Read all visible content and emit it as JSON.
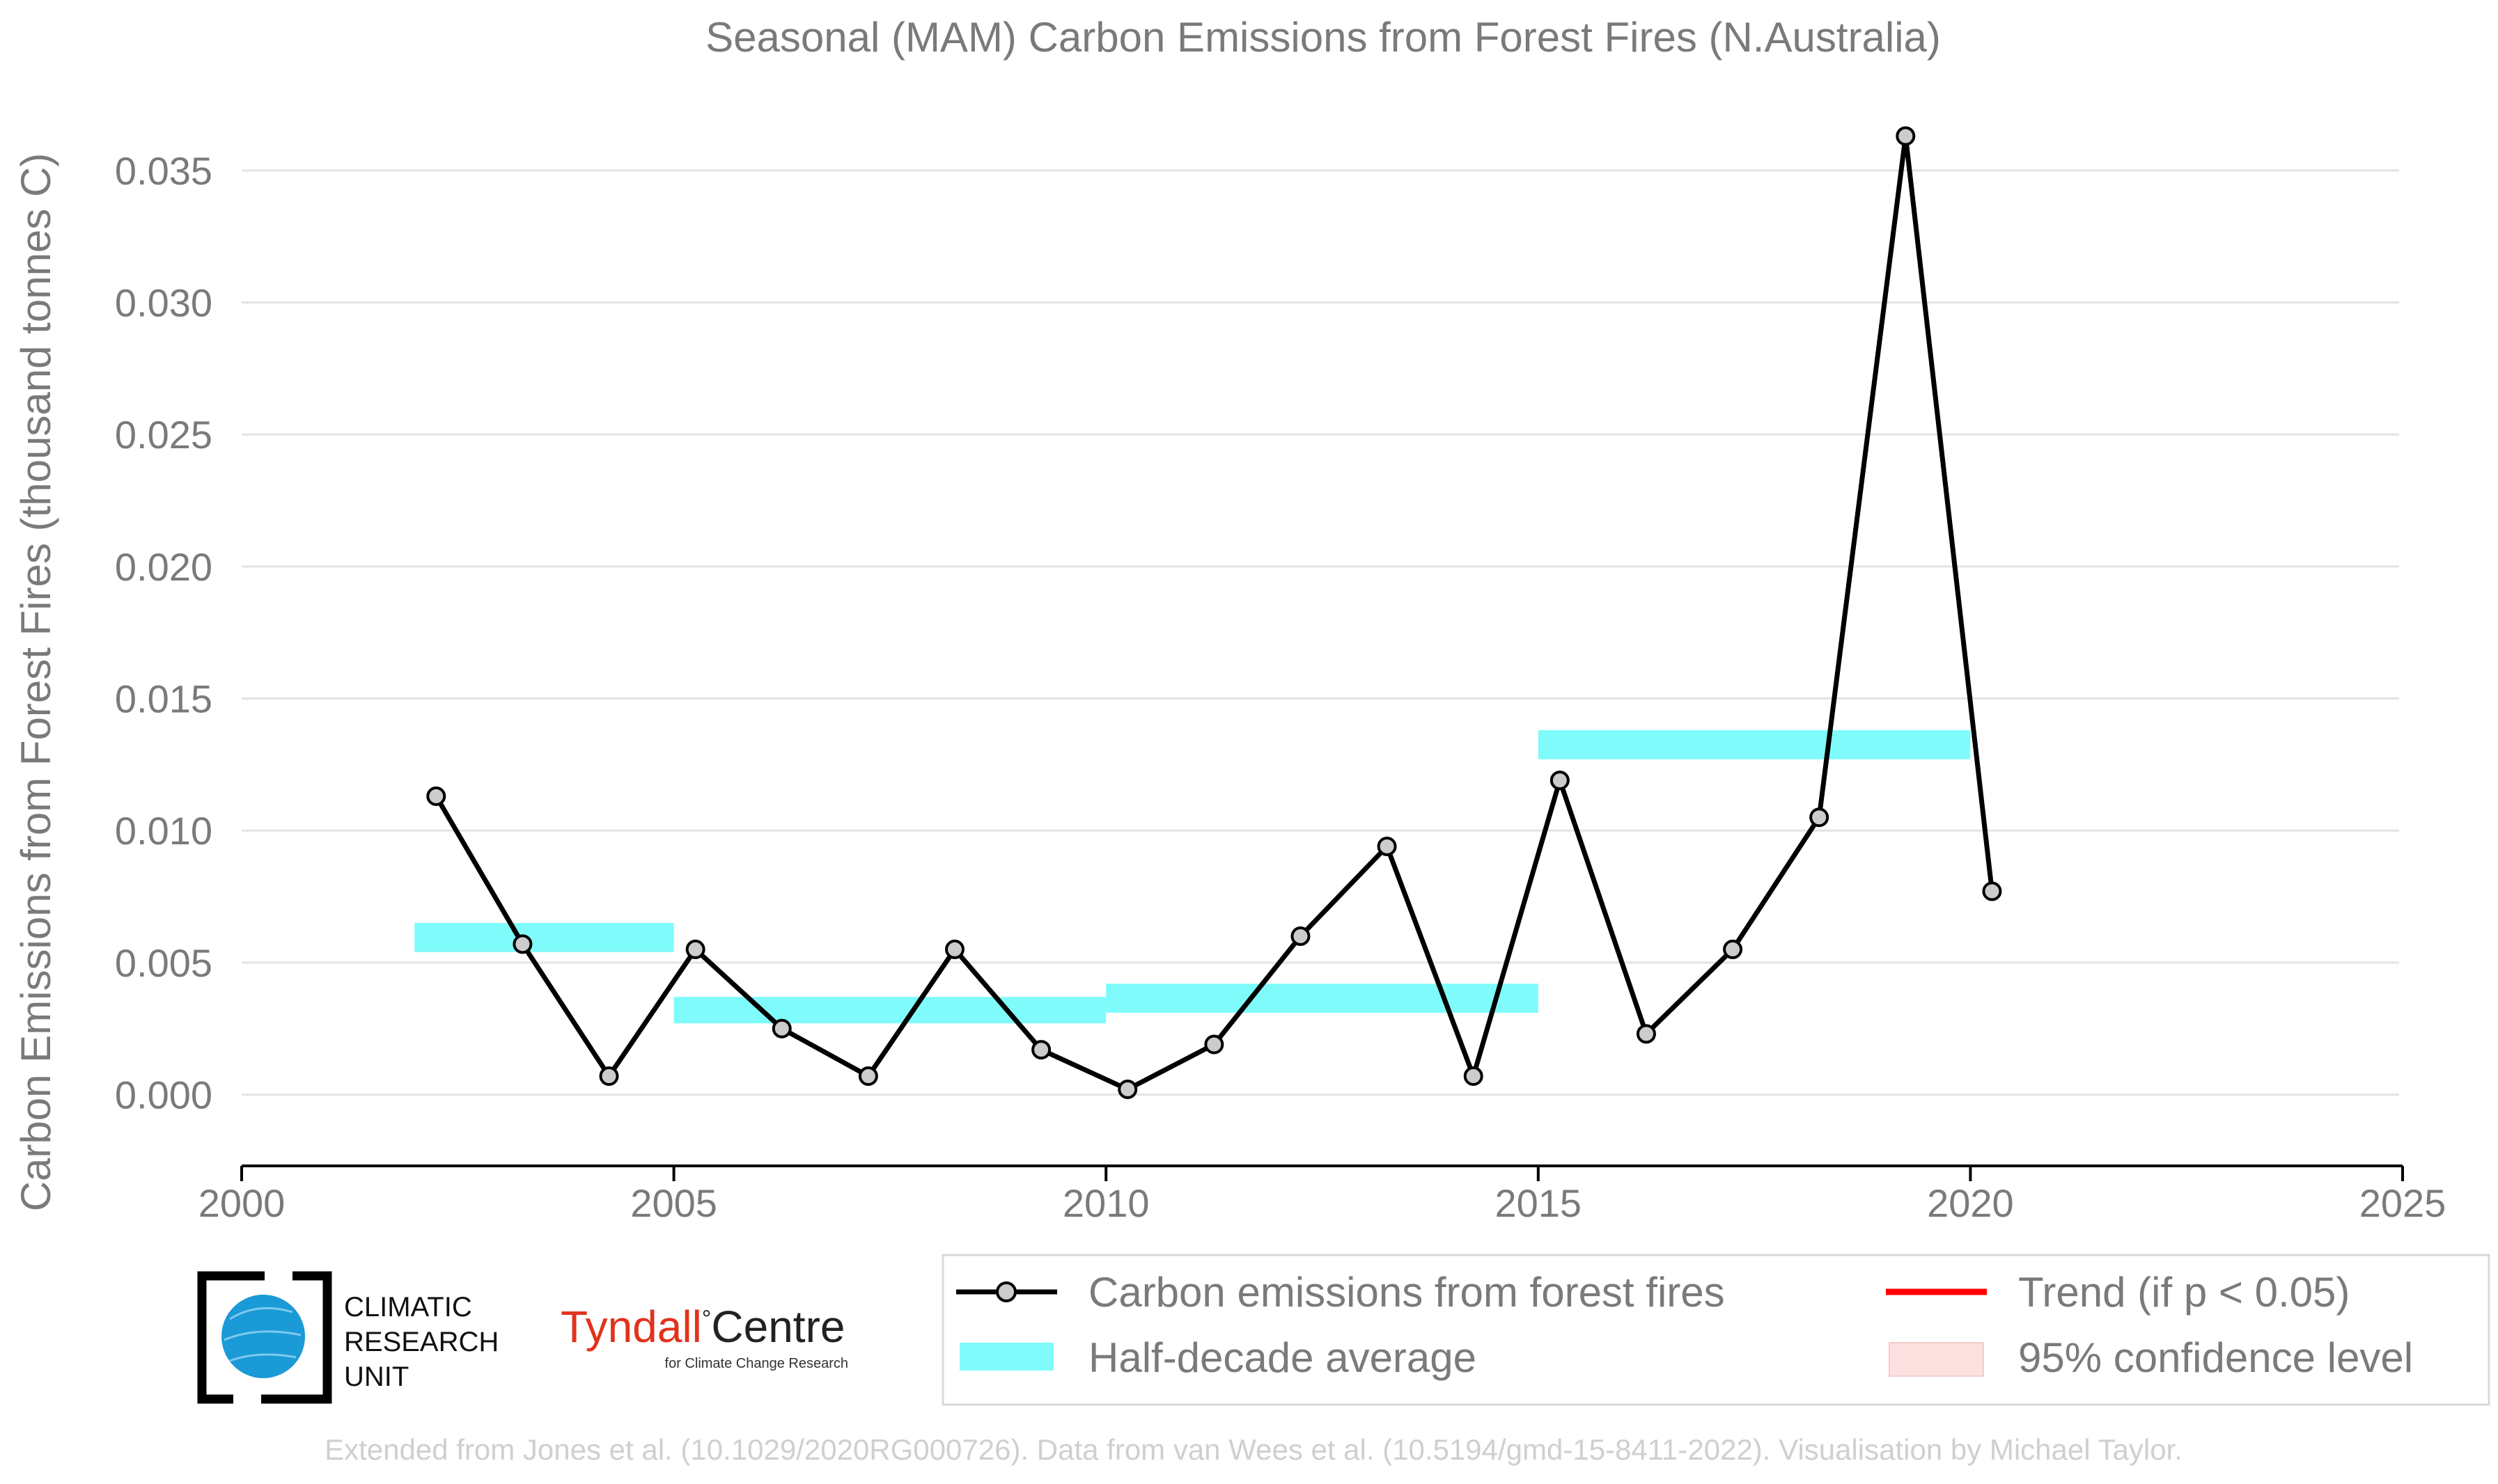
{
  "chart_data": {
    "type": "line",
    "title": "Seasonal (MAM) Carbon Emissions from Forest Fires (N.Australia)",
    "ylabel": "Carbon Emissions from Forest Fires (thousand tonnes C)",
    "xlabel": "",
    "xlim": [
      2000,
      2025
    ],
    "ylim": [
      -0.0027,
      0.0375
    ],
    "x_ticks": [
      2000,
      2005,
      2010,
      2015,
      2020,
      2025
    ],
    "x_tick_labels": [
      "2000",
      "2005",
      "2010",
      "2015",
      "2020",
      "2025"
    ],
    "y_ticks": [
      0.0,
      0.005,
      0.01,
      0.015,
      0.02,
      0.025,
      0.03,
      0.035
    ],
    "y_tick_labels": [
      "0.000",
      "0.005",
      "0.010",
      "0.015",
      "0.020",
      "0.025",
      "0.030",
      "0.035"
    ],
    "grid": "horizontal",
    "series": [
      {
        "name": "Carbon emissions from forest fires",
        "color": "#000000",
        "marker_fill": "#cccccc",
        "x": [
          2002.25,
          2003.25,
          2004.25,
          2005.25,
          2006.25,
          2007.25,
          2008.25,
          2009.25,
          2010.25,
          2011.25,
          2012.25,
          2013.25,
          2014.25,
          2015.25,
          2016.25,
          2017.25,
          2018.25,
          2019.25,
          2020.25
        ],
        "values": [
          0.0113,
          0.0057,
          0.0007,
          0.0055,
          0.0025,
          0.0007,
          0.0055,
          0.0017,
          0.0002,
          0.0019,
          0.006,
          0.0094,
          0.0007,
          0.0119,
          0.0023,
          0.0055,
          0.0105,
          0.0363,
          0.0077
        ]
      },
      {
        "name": "Half-decade average",
        "type": "band",
        "color": "#7ffbfb",
        "segments": [
          {
            "x_start": 2002,
            "x_end": 2005,
            "low": 0.0054,
            "high": 0.0065
          },
          {
            "x_start": 2005,
            "x_end": 2010,
            "low": 0.0027,
            "high": 0.0037
          },
          {
            "x_start": 2010,
            "x_end": 2015,
            "low": 0.0031,
            "high": 0.0042
          },
          {
            "x_start": 2015,
            "x_end": 2020,
            "low": 0.0127,
            "high": 0.0138
          }
        ]
      }
    ],
    "legend": {
      "placement": "bottom-right",
      "items": [
        {
          "label": "Carbon emissions from forest fires",
          "kind": "line-marker",
          "color": "#000000"
        },
        {
          "label": "Trend (if p < 0.05)",
          "kind": "line",
          "color": "#ff0000"
        },
        {
          "label": "Half-decade average",
          "kind": "patch",
          "color": "#7ffbfb"
        },
        {
          "label": "95% confidence level",
          "kind": "patch",
          "color": "#fde0e0"
        }
      ]
    }
  },
  "logos": {
    "cru": {
      "line1": "CLIMATIC",
      "line2": "RESEARCH",
      "line3": "UNIT",
      "globe_color": "#1a9ad6"
    },
    "tyndall": {
      "name": "Tyndall",
      "degree": "°",
      "centre": "Centre",
      "subtitle": "for Climate Change Research"
    }
  },
  "credit": "Extended from Jones et al. (10.1029/2020RG000726). Data from van Wees et al. (10.5194/gmd-15-8411-2022). Visualisation by Michael Taylor."
}
